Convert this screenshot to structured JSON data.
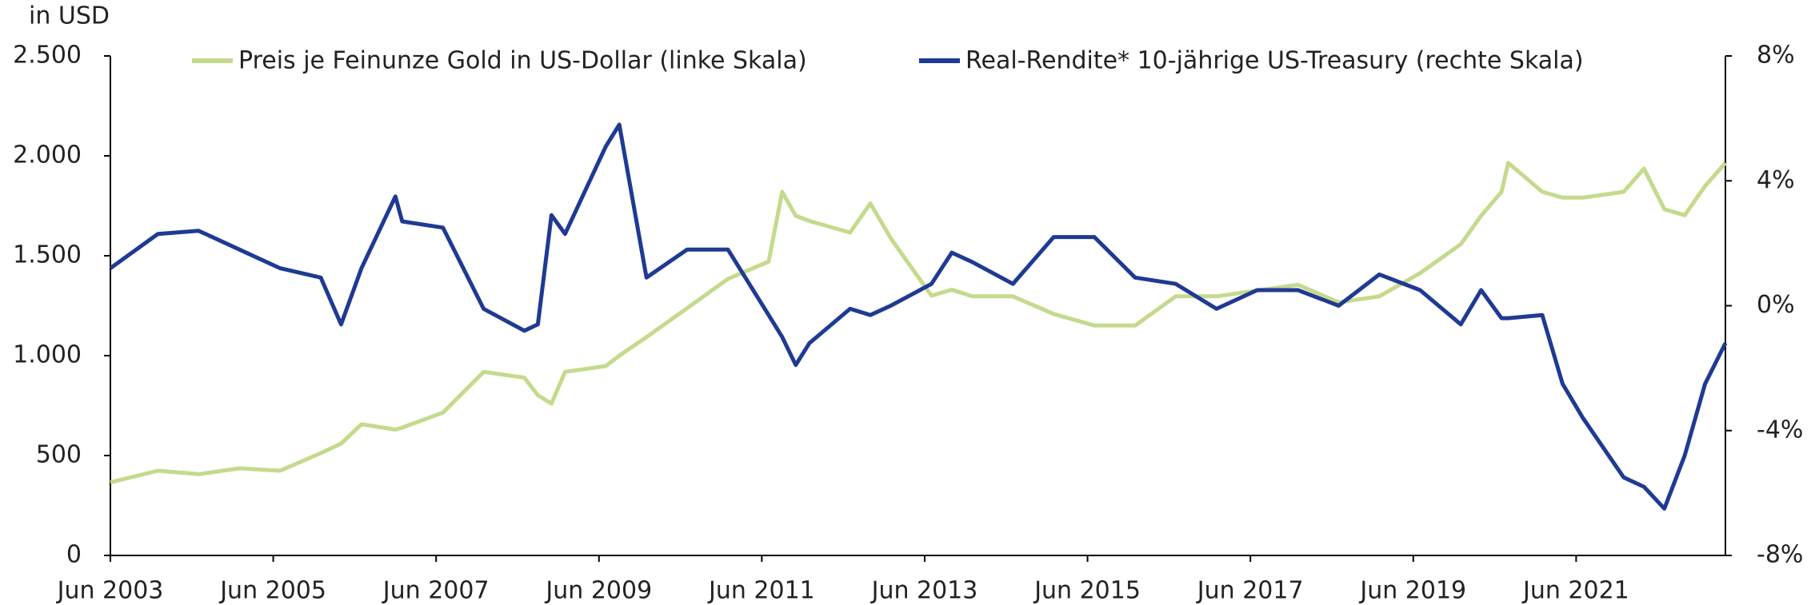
{
  "chart_data": {
    "type": "line",
    "y_axis_label": "in USD",
    "x": [
      "2003-06",
      "2004-01",
      "2004-07",
      "2005-01",
      "2005-07",
      "2006-01",
      "2006-04",
      "2006-07",
      "2006-12",
      "2007-01",
      "2007-07",
      "2008-01",
      "2008-07",
      "2008-09",
      "2008-11",
      "2009-01",
      "2009-07",
      "2009-09",
      "2010-01",
      "2010-07",
      "2011-01",
      "2011-07",
      "2011-09",
      "2011-11",
      "2012-01",
      "2012-07",
      "2012-10",
      "2013-01",
      "2013-07",
      "2013-10",
      "2014-01",
      "2014-07",
      "2015-01",
      "2015-07",
      "2016-01",
      "2016-07",
      "2017-01",
      "2017-07",
      "2018-01",
      "2018-07",
      "2019-01",
      "2019-07",
      "2020-01",
      "2020-04",
      "2020-07",
      "2020-08",
      "2021-01",
      "2021-04",
      "2021-07",
      "2022-01",
      "2022-04",
      "2022-07",
      "2022-10",
      "2023-01",
      "2023-04"
    ],
    "series": [
      {
        "name": "Preis je Feinunze Gold in US-Dollar (linke Skala)",
        "color": "#c5da8c",
        "axis": "y",
        "values": [
          366,
          424,
          407,
          436,
          424,
          512,
          560,
          657,
          630,
          640,
          715,
          919,
          890,
          802,
          760,
          919,
          948,
          1000,
          1093,
          1238,
          1384,
          1471,
          1820,
          1700,
          1674,
          1616,
          1762,
          1587,
          1300,
          1330,
          1297,
          1297,
          1209,
          1151,
          1151,
          1297,
          1297,
          1326,
          1355,
          1267,
          1297,
          1413,
          1558,
          1700,
          1820,
          1965,
          1820,
          1791,
          1791,
          1820,
          1936,
          1733,
          1703,
          1849,
          1965
        ]
      },
      {
        "name": "Real-Rendite* 10-jährige US-Treasury (rechte Skala)",
        "color": "#1f3a93",
        "axis": "y2",
        "values": [
          1.2,
          2.3,
          2.4,
          1.8,
          1.2,
          0.9,
          -0.6,
          1.2,
          3.5,
          2.7,
          2.5,
          -0.1,
          -0.8,
          -0.6,
          2.9,
          2.3,
          5.1,
          5.8,
          0.9,
          1.8,
          1.8,
          -0.3,
          -1.0,
          -1.9,
          -1.2,
          -0.1,
          -0.3,
          0,
          0.7,
          1.7,
          1.4,
          0.7,
          2.2,
          2.2,
          0.9,
          0.7,
          -0.1,
          0.5,
          0.5,
          0,
          1.0,
          0.5,
          -0.6,
          0.5,
          -0.4,
          -0.4,
          -0.3,
          -2.5,
          -3.6,
          -5.5,
          -5.8,
          -6.5,
          -4.8,
          -2.5,
          -1.2
        ]
      }
    ],
    "xlim": [
      "2003-06",
      "2023-04"
    ],
    "xticks": [
      {
        "value": "2003-06",
        "label": "Jun 2003"
      },
      {
        "value": "2005-06",
        "label": "Jun 2005"
      },
      {
        "value": "2007-06",
        "label": "Jun 2007"
      },
      {
        "value": "2009-06",
        "label": "Jun 2009"
      },
      {
        "value": "2011-06",
        "label": "Jun 2011"
      },
      {
        "value": "2013-06",
        "label": "Jun 2013"
      },
      {
        "value": "2015-06",
        "label": "Jun 2015"
      },
      {
        "value": "2017-06",
        "label": "Jun 2017"
      },
      {
        "value": "2019-06",
        "label": "Jun 2019"
      },
      {
        "value": "2021-06",
        "label": "Jun 2021"
      }
    ],
    "ylim": [
      0,
      2500
    ],
    "yticks": [
      0,
      500,
      {
        "value": 1000,
        "label": "1.000"
      },
      {
        "value": 1500,
        "label": "1.500"
      },
      {
        "value": 2000,
        "label": "2.000"
      },
      {
        "value": 2500,
        "label": "2.500"
      }
    ],
    "y2lim": [
      -8,
      8
    ],
    "y2ticks": [
      {
        "value": -8,
        "label": "-8%"
      },
      {
        "value": -4,
        "label": "-4%"
      },
      {
        "value": 0,
        "label": "0%"
      },
      {
        "value": 4,
        "label": "4%"
      },
      {
        "value": 8,
        "label": "8%"
      }
    ],
    "grid": false,
    "legend": "top"
  }
}
